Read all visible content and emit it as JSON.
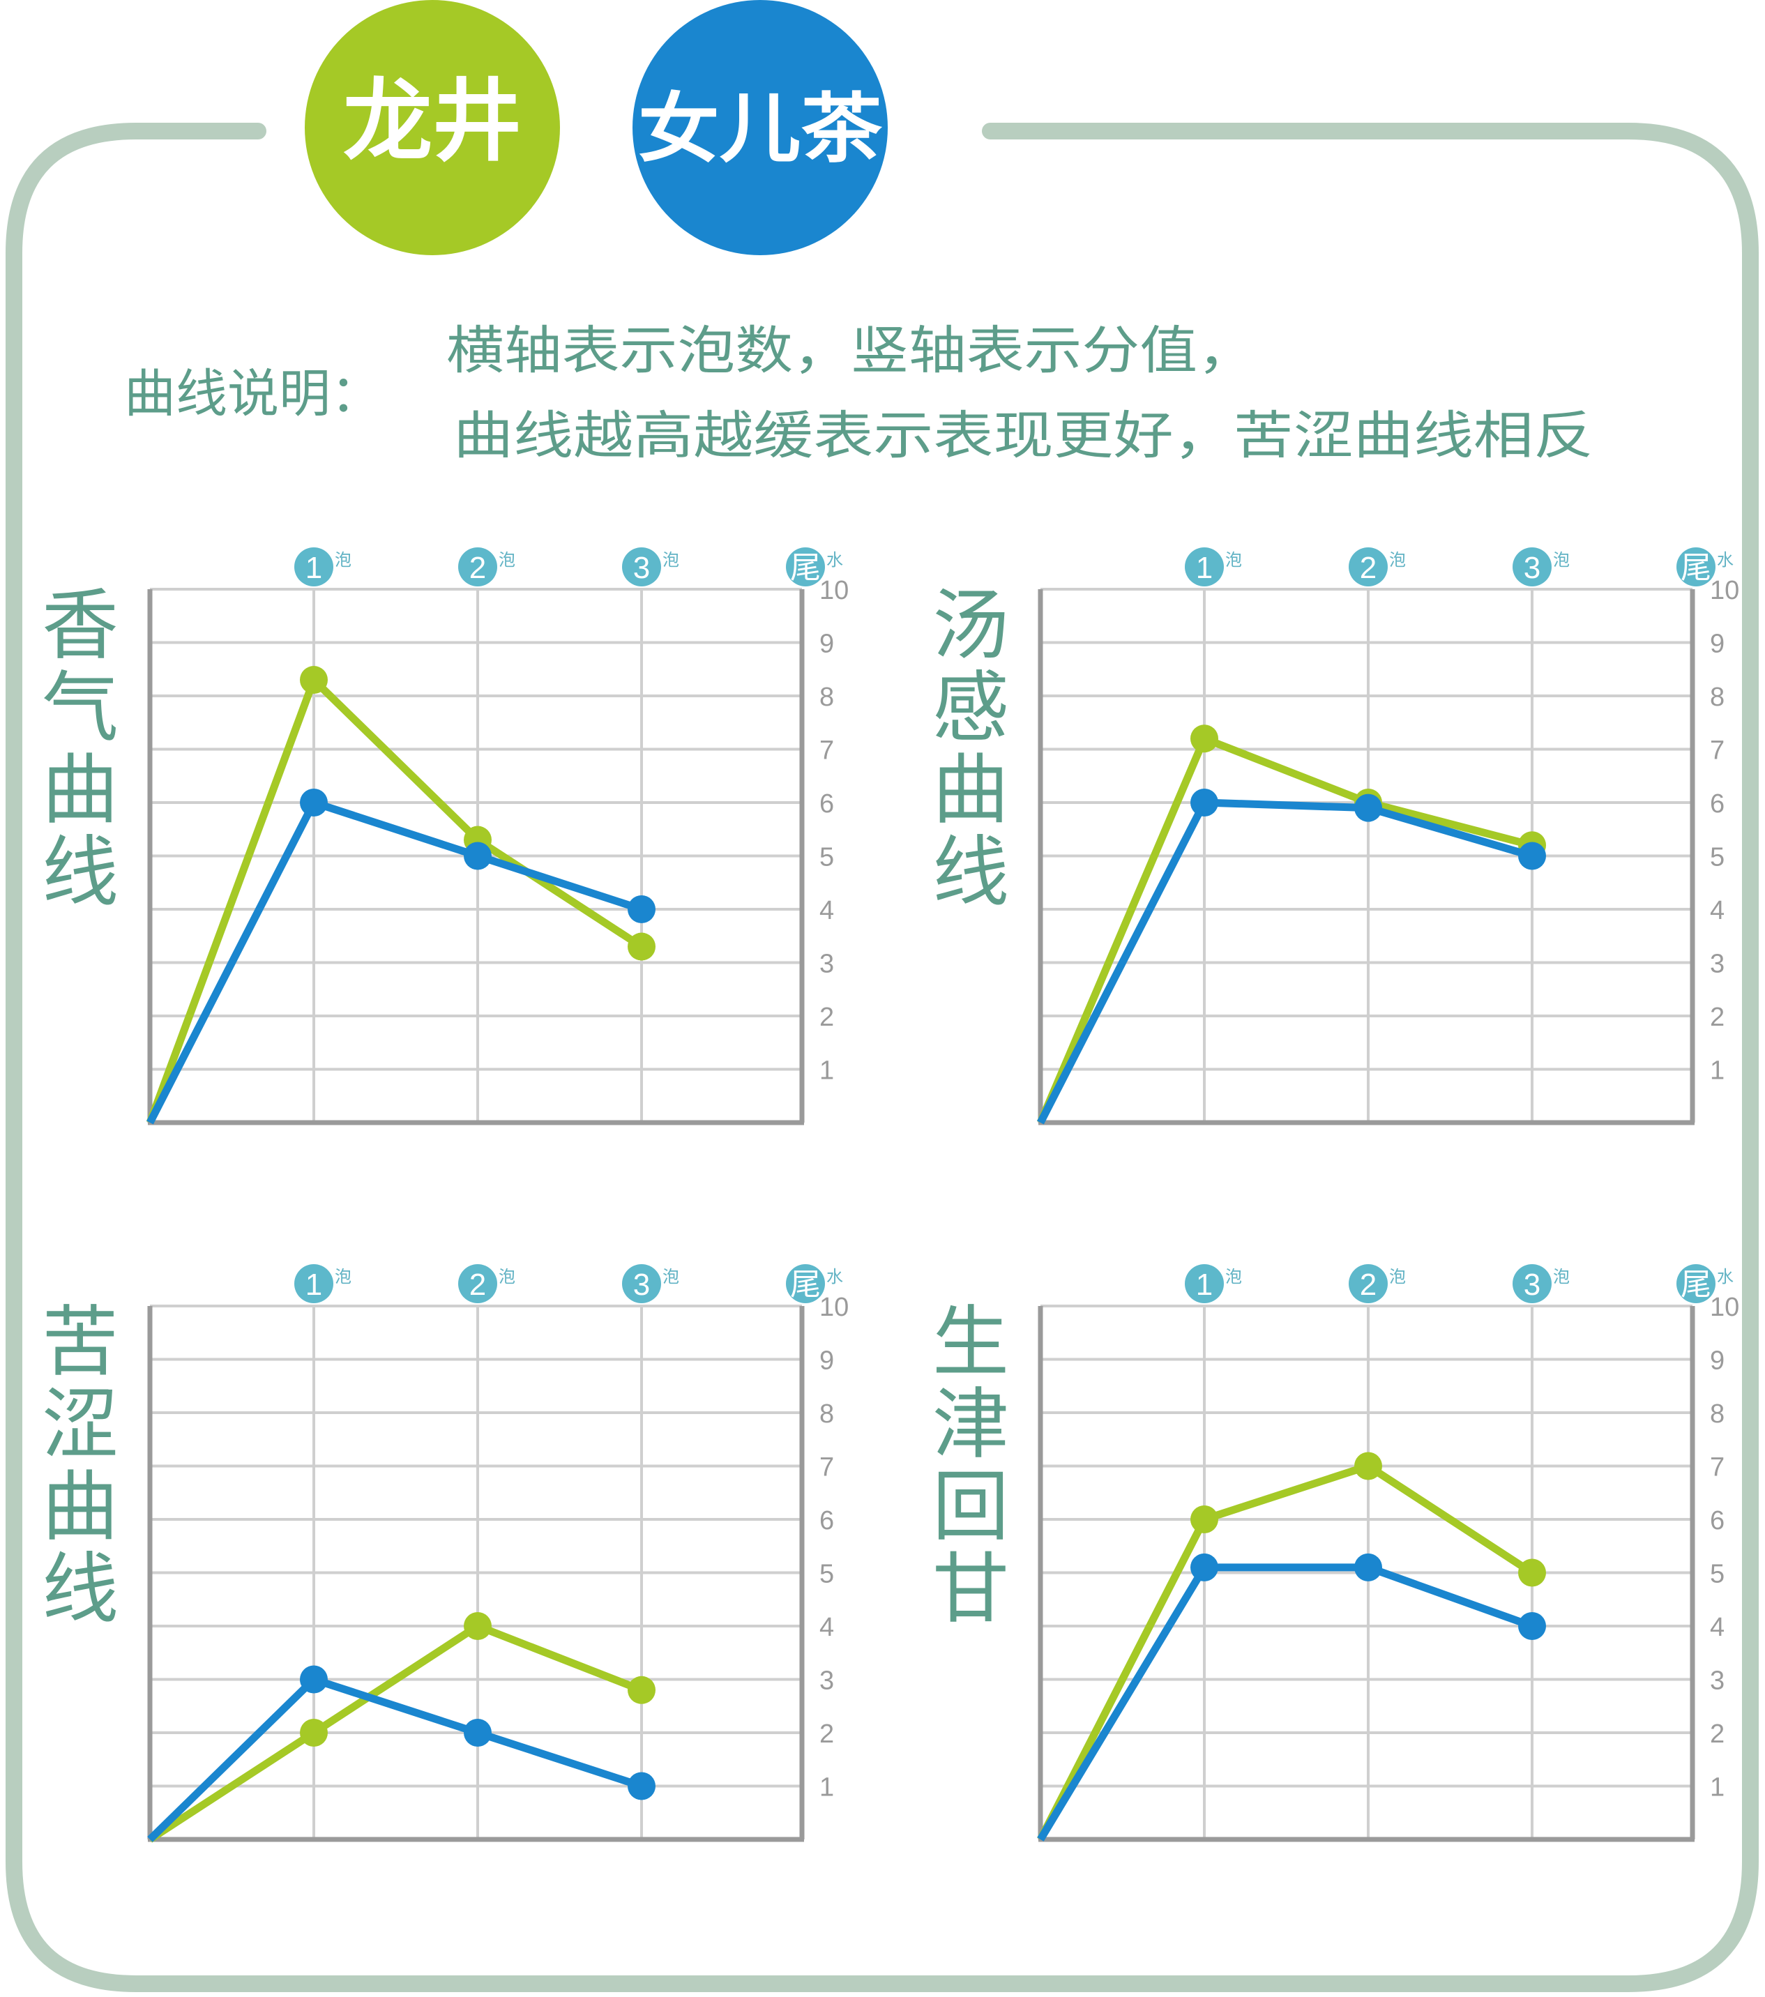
{
  "colors": {
    "frame": "#b8cebf",
    "longjing": "#a5c926",
    "nuercha": "#1a86cf",
    "text": "#5d9d8a",
    "badge": "#5db8cb",
    "grid": "#cfcfcf",
    "axis": "#9a9a9a"
  },
  "legend": {
    "items": [
      {
        "label": "龙井",
        "color": "#a5c926"
      },
      {
        "label": "女儿茶",
        "color": "#1a86cf"
      }
    ]
  },
  "note": {
    "prefix": "曲线说明：",
    "line1": "横轴表示泡数，竖轴表示分值，",
    "line2": "曲线越高越缓表示表现更好，苦涩曲线相反"
  },
  "x_badges": [
    {
      "num": "1",
      "suffix": "泡"
    },
    {
      "num": "2",
      "suffix": "泡"
    },
    {
      "num": "3",
      "suffix": "泡"
    },
    {
      "num": "尾",
      "suffix": "水"
    }
  ],
  "y_ticks": [
    "1",
    "2",
    "3",
    "4",
    "5",
    "6",
    "7",
    "8",
    "9",
    "10"
  ],
  "chart_data": [
    {
      "type": "line",
      "title": "香气曲线",
      "x": [
        0,
        1,
        2,
        3
      ],
      "ylim": [
        0,
        10
      ],
      "grid": true,
      "series": [
        {
          "name": "龙井",
          "color": "#a5c926",
          "values": [
            0,
            8.3,
            5.3,
            3.3
          ]
        },
        {
          "name": "女儿茶",
          "color": "#1a86cf",
          "values": [
            0,
            6.0,
            5.0,
            4.0
          ]
        }
      ]
    },
    {
      "type": "line",
      "title": "汤感曲线",
      "x": [
        0,
        1,
        2,
        3
      ],
      "ylim": [
        0,
        10
      ],
      "grid": true,
      "series": [
        {
          "name": "龙井",
          "color": "#a5c926",
          "values": [
            0,
            7.2,
            6.0,
            5.2
          ]
        },
        {
          "name": "女儿茶",
          "color": "#1a86cf",
          "values": [
            0,
            6.0,
            5.9,
            5.0
          ]
        }
      ]
    },
    {
      "type": "line",
      "title": "苦涩曲线",
      "x": [
        0,
        1,
        2,
        3
      ],
      "ylim": [
        0,
        10
      ],
      "grid": true,
      "series": [
        {
          "name": "龙井",
          "color": "#a5c926",
          "values": [
            0,
            2.0,
            4.0,
            2.8
          ]
        },
        {
          "name": "女儿茶",
          "color": "#1a86cf",
          "values": [
            0,
            3.0,
            2.0,
            1.0
          ]
        }
      ]
    },
    {
      "type": "line",
      "title": "生津回甘",
      "x": [
        0,
        1,
        2,
        3
      ],
      "ylim": [
        0,
        10
      ],
      "grid": true,
      "series": [
        {
          "name": "龙井",
          "color": "#a5c926",
          "values": [
            0,
            6.0,
            7.0,
            5.0
          ]
        },
        {
          "name": "女儿茶",
          "color": "#1a86cf",
          "values": [
            0,
            5.1,
            5.1,
            4.0
          ]
        }
      ]
    }
  ]
}
